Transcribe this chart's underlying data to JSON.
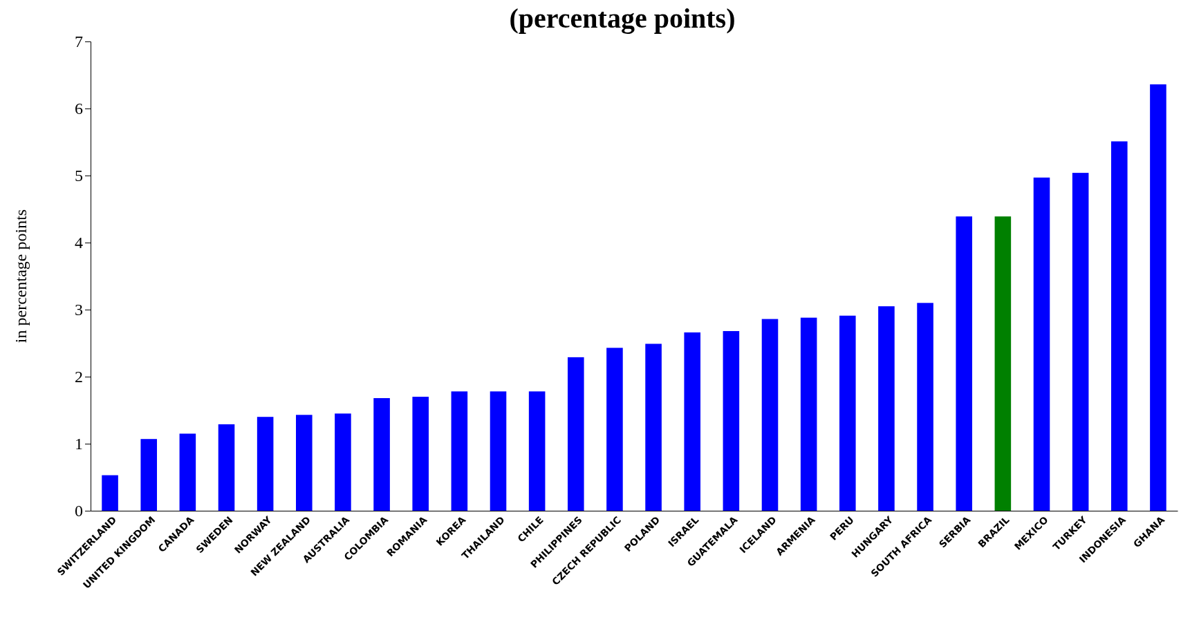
{
  "chart_data": {
    "type": "bar",
    "title": "(percentage points)",
    "ylabel": "in percentage points",
    "categories": [
      "SWITZERLAND",
      "UNITED KINGDOM",
      "CANADA",
      "SWEDEN",
      "NORWAY",
      "NEW ZEALAND",
      "AUSTRALIA",
      "COLOMBIA",
      "ROMANIA",
      "KOREA",
      "THAILAND",
      "CHILE",
      "PHILIPPINES",
      "CZECH REPUBLIC",
      "POLAND",
      "ISRAEL",
      "GUATEMALA",
      "ICELAND",
      "ARMENIA",
      "PERU",
      "HUNGARY",
      "SOUTH AFRICA",
      "SERBIA",
      "BRAZIL",
      "MEXICO",
      "TURKEY",
      "INDONESIA",
      "GHANA"
    ],
    "values": [
      0.53,
      1.07,
      1.15,
      1.29,
      1.4,
      1.43,
      1.45,
      1.68,
      1.7,
      1.78,
      1.78,
      1.78,
      2.29,
      2.43,
      2.49,
      2.66,
      2.68,
      2.86,
      2.88,
      2.91,
      3.05,
      3.1,
      4.39,
      4.39,
      4.97,
      5.04,
      5.51,
      6.36
    ],
    "colors": [
      "#0000ff",
      "#0000ff",
      "#0000ff",
      "#0000ff",
      "#0000ff",
      "#0000ff",
      "#0000ff",
      "#0000ff",
      "#0000ff",
      "#0000ff",
      "#0000ff",
      "#0000ff",
      "#0000ff",
      "#0000ff",
      "#0000ff",
      "#0000ff",
      "#0000ff",
      "#0000ff",
      "#0000ff",
      "#0000ff",
      "#0000ff",
      "#0000ff",
      "#0000ff",
      "#008000",
      "#0000ff",
      "#0000ff",
      "#0000ff",
      "#0000ff"
    ],
    "ylim": [
      0,
      7
    ],
    "yticks": [
      0,
      1,
      2,
      3,
      4,
      5,
      6,
      7
    ],
    "grid": false
  }
}
